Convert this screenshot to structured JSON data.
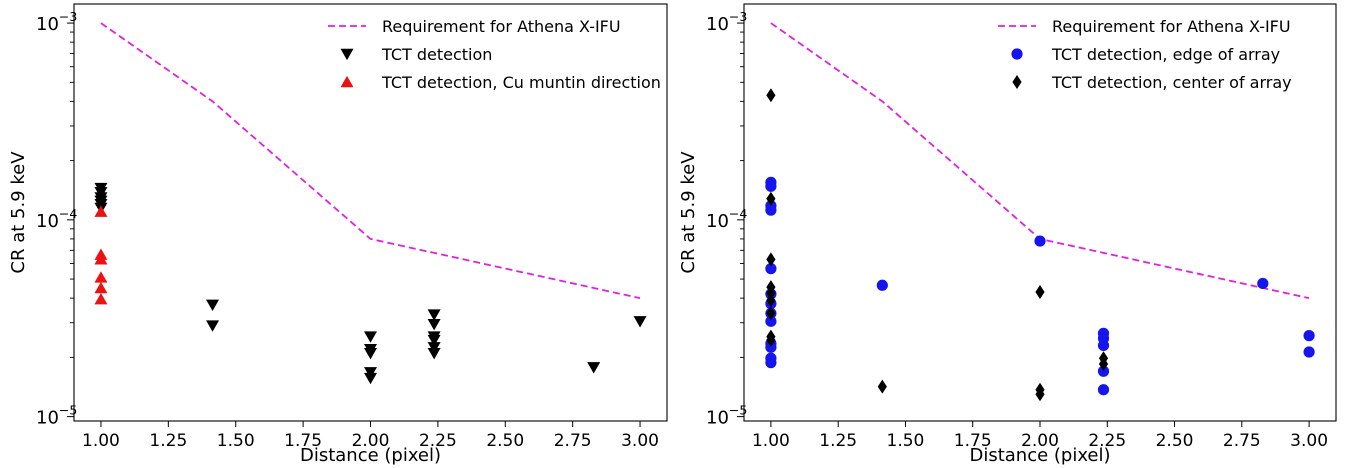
{
  "chart_data": [
    {
      "type": "scatter",
      "xlabel": "Distance (pixel)",
      "ylabel": "CR at 5.9 keV",
      "yscale": "log",
      "xlim": [
        0.9,
        3.1
      ],
      "ylim": [
        9.5e-06,
        0.00125
      ],
      "x_ticks": [
        "1.00",
        "1.25",
        "1.50",
        "1.75",
        "2.00",
        "2.25",
        "2.50",
        "2.75",
        "3.00"
      ],
      "x_tick_values": [
        1.0,
        1.25,
        1.5,
        1.75,
        2.0,
        2.25,
        2.5,
        2.75,
        3.0
      ],
      "y_ticks": [
        {
          "value": 0.001,
          "base": "10",
          "exp": "−3"
        },
        {
          "value": 0.0001,
          "base": "10",
          "exp": "−4"
        },
        {
          "value": 1e-05,
          "base": "10",
          "exp": "−5"
        }
      ],
      "legend_position": "top-right",
      "series": [
        {
          "name": "Requirement for Athena X-IFU",
          "kind": "line",
          "style": "dashed",
          "color": "#e020e0",
          "points": [
            [
              1.0,
              0.001
            ],
            [
              1.414,
              0.0004
            ],
            [
              2.0,
              8e-05
            ],
            [
              3.0,
              4e-05
            ]
          ]
        },
        {
          "name": "TCT detection",
          "kind": "marker",
          "marker": "triangle-down",
          "color": "#000000",
          "points": [
            [
              1.0,
              0.000145
            ],
            [
              1.0,
              0.000138
            ],
            [
              1.0,
              0.00013
            ],
            [
              1.0,
              0.000125
            ],
            [
              1.0,
              0.00012
            ],
            [
              1.0,
              0.000115
            ],
            [
              1.414,
              3.7e-05
            ],
            [
              1.414,
              2.9e-05
            ],
            [
              2.0,
              2.55e-05
            ],
            [
              2.0,
              2.2e-05
            ],
            [
              2.0,
              2.1e-05
            ],
            [
              2.0,
              1.68e-05
            ],
            [
              2.0,
              1.57e-05
            ],
            [
              2.236,
              3.3e-05
            ],
            [
              2.236,
              2.95e-05
            ],
            [
              2.236,
              2.55e-05
            ],
            [
              2.236,
              2.45e-05
            ],
            [
              2.236,
              2.25e-05
            ],
            [
              2.236,
              2.1e-05
            ],
            [
              2.828,
              1.78e-05
            ],
            [
              3.0,
              3.05e-05
            ]
          ]
        },
        {
          "name": "TCT detection, Cu muntin direction",
          "kind": "marker",
          "marker": "triangle-up",
          "color": "#ee1111",
          "points": [
            [
              1.0,
              0.00011
            ],
            [
              1.0,
              6.65e-05
            ],
            [
              1.0,
              6.3e-05
            ],
            [
              1.0,
              5.1e-05
            ],
            [
              1.0,
              4.5e-05
            ],
            [
              1.0,
              3.95e-05
            ]
          ]
        }
      ]
    },
    {
      "type": "scatter",
      "xlabel": "Distance (pixel)",
      "ylabel": "CR at 5.9 keV",
      "yscale": "log",
      "xlim": [
        0.9,
        3.1
      ],
      "ylim": [
        9.5e-06,
        0.00125
      ],
      "x_ticks": [
        "1.00",
        "1.25",
        "1.50",
        "1.75",
        "2.00",
        "2.25",
        "2.50",
        "2.75",
        "3.00"
      ],
      "x_tick_values": [
        1.0,
        1.25,
        1.5,
        1.75,
        2.0,
        2.25,
        2.5,
        2.75,
        3.0
      ],
      "y_ticks": [
        {
          "value": 0.001,
          "base": "10",
          "exp": "−3"
        },
        {
          "value": 0.0001,
          "base": "10",
          "exp": "−4"
        },
        {
          "value": 1e-05,
          "base": "10",
          "exp": "−5"
        }
      ],
      "legend_position": "top-right",
      "series": [
        {
          "name": "Requirement for Athena X-IFU",
          "kind": "line",
          "style": "dashed",
          "color": "#e020e0",
          "points": [
            [
              1.0,
              0.001
            ],
            [
              1.414,
              0.0004
            ],
            [
              2.0,
              8e-05
            ],
            [
              3.0,
              4e-05
            ]
          ]
        },
        {
          "name": "TCT detection, edge of array",
          "kind": "marker",
          "marker": "circle",
          "color": "#1515ee",
          "points": [
            [
              1.0,
              0.000155
            ],
            [
              1.0,
              0.000148
            ],
            [
              1.0,
              0.000118
            ],
            [
              1.0,
              0.000112
            ],
            [
              1.0,
              5.65e-05
            ],
            [
              1.0,
              4.2e-05
            ],
            [
              1.0,
              3.75e-05
            ],
            [
              1.0,
              3.35e-05
            ],
            [
              1.0,
              3.05e-05
            ],
            [
              1.0,
              2.35e-05
            ],
            [
              1.0,
              2.25e-05
            ],
            [
              1.0,
              1.98e-05
            ],
            [
              1.0,
              1.88e-05
            ],
            [
              1.414,
              4.65e-05
            ],
            [
              2.0,
              7.8e-05
            ],
            [
              2.236,
              2.65e-05
            ],
            [
              2.236,
              2.5e-05
            ],
            [
              2.236,
              2.3e-05
            ],
            [
              2.236,
              1.7e-05
            ],
            [
              2.236,
              1.37e-05
            ],
            [
              2.828,
              4.75e-05
            ],
            [
              3.0,
              2.58e-05
            ],
            [
              3.0,
              2.13e-05
            ]
          ]
        },
        {
          "name": "TCT detection, center of array",
          "kind": "marker",
          "marker": "diamond",
          "color": "#000000",
          "points": [
            [
              1.0,
              0.00043
            ],
            [
              1.0,
              0.000128
            ],
            [
              1.0,
              6.3e-05
            ],
            [
              1.0,
              4.55e-05
            ],
            [
              1.0,
              4.25e-05
            ],
            [
              1.0,
              3.9e-05
            ],
            [
              1.0,
              3.35e-05
            ],
            [
              1.0,
              2.55e-05
            ],
            [
              1.0,
              2.45e-05
            ],
            [
              1.414,
              1.42e-05
            ],
            [
              2.0,
              4.3e-05
            ],
            [
              2.0,
              1.37e-05
            ],
            [
              2.0,
              1.3e-05
            ],
            [
              2.236,
              1.98e-05
            ],
            [
              2.236,
              1.85e-05
            ]
          ]
        }
      ]
    }
  ]
}
